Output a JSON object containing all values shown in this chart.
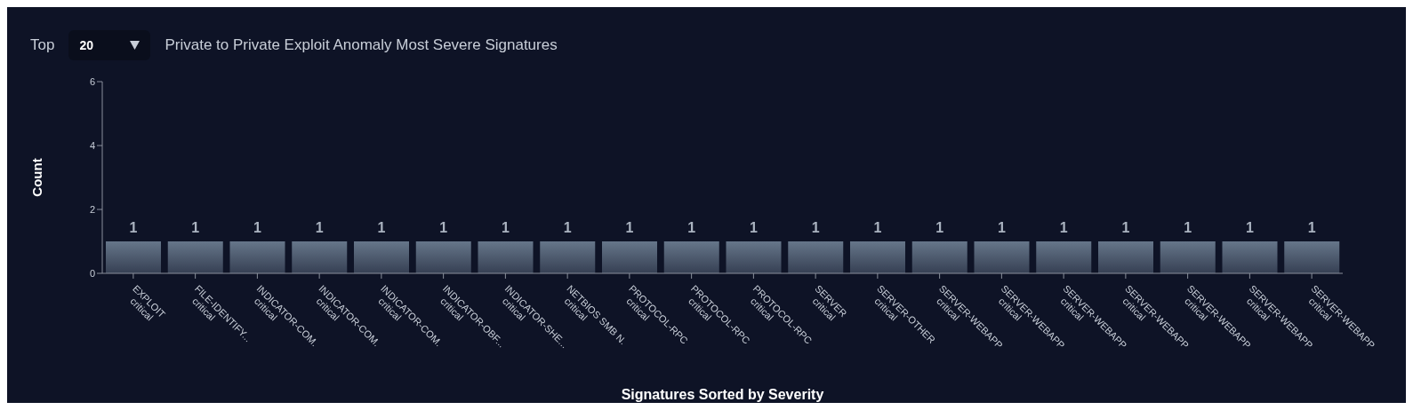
{
  "chart_data": {
    "type": "bar",
    "title": "Private to Private Exploit Anomaly Most Severe Signatures",
    "xlabel": "Signatures Sorted by Severity",
    "ylabel": "Count",
    "annotations": [
      "Top",
      "20"
    ],
    "categories": [
      "EXPLOIT\ncritical",
      "FILE-IDENTIFY...\ncritical",
      "INDICATOR-COM.\ncritical",
      "INDICATOR-COM.\ncritical",
      "INDICATOR-COM.\ncritical",
      "INDICATOR-OBF...\ncritical",
      "INDICATOR-SHE...\ncritical",
      "NETBIOS SMB N.\ncritical",
      "PROTOCOL-RPC\ncritical",
      "PROTOCOL-RPC\ncritical",
      "PROTOCOL-RPC\ncritical",
      "SERVER\ncritical",
      "SERVER-OTHER\ncritical",
      "SERVER-WEBAPP\ncritical",
      "SERVER-WEBAPP\ncritical",
      "SERVER-WEBAPP\ncritical",
      "SERVER-WEBAPP\ncritical",
      "SERVER-WEBAPP\ncritical",
      "SERVER-WEBAPP\ncritical",
      "SERVER-WEBAPP\ncritical"
    ],
    "values": [
      1,
      1,
      1,
      1,
      1,
      1,
      1,
      1,
      1,
      1,
      1,
      1,
      1,
      1,
      1,
      1,
      1,
      1,
      1,
      1
    ],
    "color": "#66768a",
    "ylim": [
      0,
      6
    ],
    "yticks": [
      0,
      2,
      4,
      6
    ],
    "data_labels": true
  }
}
